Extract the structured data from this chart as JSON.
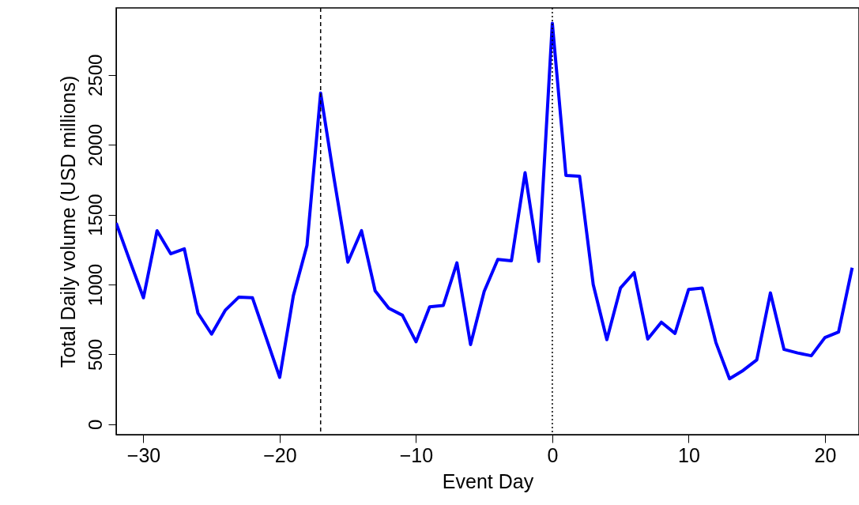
{
  "chart_data": {
    "type": "line",
    "xlabel": "Event Day",
    "ylabel": "Total Daily volume (USD millions)",
    "x": [
      -32,
      -31,
      -30,
      -29,
      -28,
      -27,
      -26,
      -25,
      -24,
      -23,
      -22,
      -21,
      -20,
      -19,
      -18,
      -17,
      -16,
      -15,
      -14,
      -13,
      -12,
      -11,
      -10,
      -9,
      -8,
      -7,
      -6,
      -5,
      -4,
      -3,
      -2,
      -1,
      0,
      1,
      2,
      3,
      4,
      5,
      6,
      7,
      8,
      9,
      10,
      11,
      12,
      13,
      14,
      15,
      16,
      17,
      18,
      19,
      20,
      21,
      22
    ],
    "series": [
      {
        "color": "#0000ff",
        "values": [
          1440,
          1170,
          905,
          1385,
          1220,
          1255,
          795,
          645,
          815,
          910,
          905,
          620,
          335,
          920,
          1280,
          2370,
          1750,
          1160,
          1385,
          955,
          830,
          780,
          590,
          840,
          850,
          1155,
          570,
          950,
          1180,
          1170,
          1800,
          1165,
          2870,
          1780,
          1775,
          1000,
          605,
          975,
          1085,
          610,
          730,
          650,
          965,
          975,
          585,
          325,
          385,
          460,
          940,
          535,
          510,
          490,
          620,
          660,
          1120
        ]
      }
    ],
    "xlim": [
      -32,
      22.5
    ],
    "ylim": [
      -75,
      2980
    ],
    "xticks": [
      -30,
      -20,
      -10,
      0,
      10,
      20
    ],
    "yticks": [
      0,
      500,
      1000,
      1500,
      2000,
      2500
    ],
    "ref_lines": [
      {
        "axis": "x",
        "value": -17,
        "line_style": "dashed",
        "color": "#000000"
      },
      {
        "axis": "x",
        "value": 0,
        "line_style": "dotted",
        "color": "#000000"
      }
    ],
    "grid": false,
    "line_style": "solid",
    "marker": "none"
  }
}
